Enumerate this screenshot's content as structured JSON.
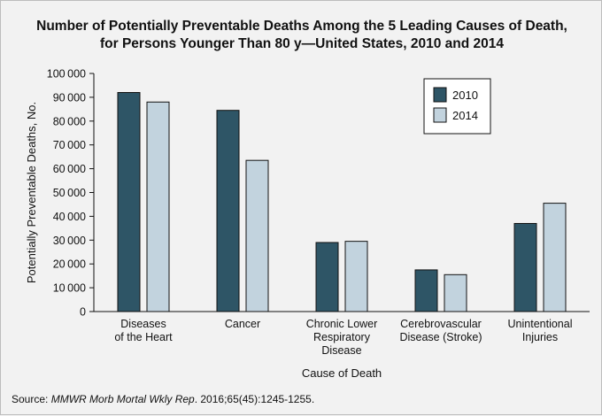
{
  "chart_data": {
    "type": "bar",
    "title_lines": [
      "Number of Potentially Preventable Deaths Among the 5 Leading Causes of Death,",
      "for Persons Younger Than 80 y—United States, 2010 and 2014"
    ],
    "xlabel": "Cause of Death",
    "ylabel": "Potentially Preventable Deaths, No.",
    "categories": [
      "Diseases of the Heart",
      "Cancer",
      "Chronic Lower Respiratory Disease",
      "Cerebrovascular Disease (Stroke)",
      "Unintentional Injuries"
    ],
    "category_label_lines": [
      [
        "Diseases",
        "of the Heart"
      ],
      [
        "Cancer"
      ],
      [
        "Chronic Lower",
        "Respiratory",
        "Disease"
      ],
      [
        "Cerebrovascular",
        "Disease (Stroke)"
      ],
      [
        "Unintentional",
        "Injuries"
      ]
    ],
    "series": [
      {
        "name": "2010",
        "color": "#2e5566",
        "values": [
          92000,
          84500,
          29000,
          17500,
          37000
        ]
      },
      {
        "name": "2014",
        "color": "#c2d3de",
        "values": [
          88000,
          63500,
          29500,
          15500,
          45500
        ]
      }
    ],
    "ylim": [
      0,
      100000
    ],
    "yticks": [
      0,
      10000,
      20000,
      30000,
      40000,
      50000,
      60000,
      70000,
      80000,
      90000,
      100000
    ],
    "ytick_labels": [
      "0",
      "10 000",
      "20 000",
      "30 000",
      "40 000",
      "50 000",
      "60 000",
      "70 000",
      "80 000",
      "90 000",
      "100 000"
    ],
    "grid": false,
    "legend_position": "top-right"
  },
  "source": {
    "prefix": "Source: ",
    "journal": "MMWR Morb Mortal Wkly Rep",
    "suffix": ". 2016;65(45):1245-1255."
  }
}
